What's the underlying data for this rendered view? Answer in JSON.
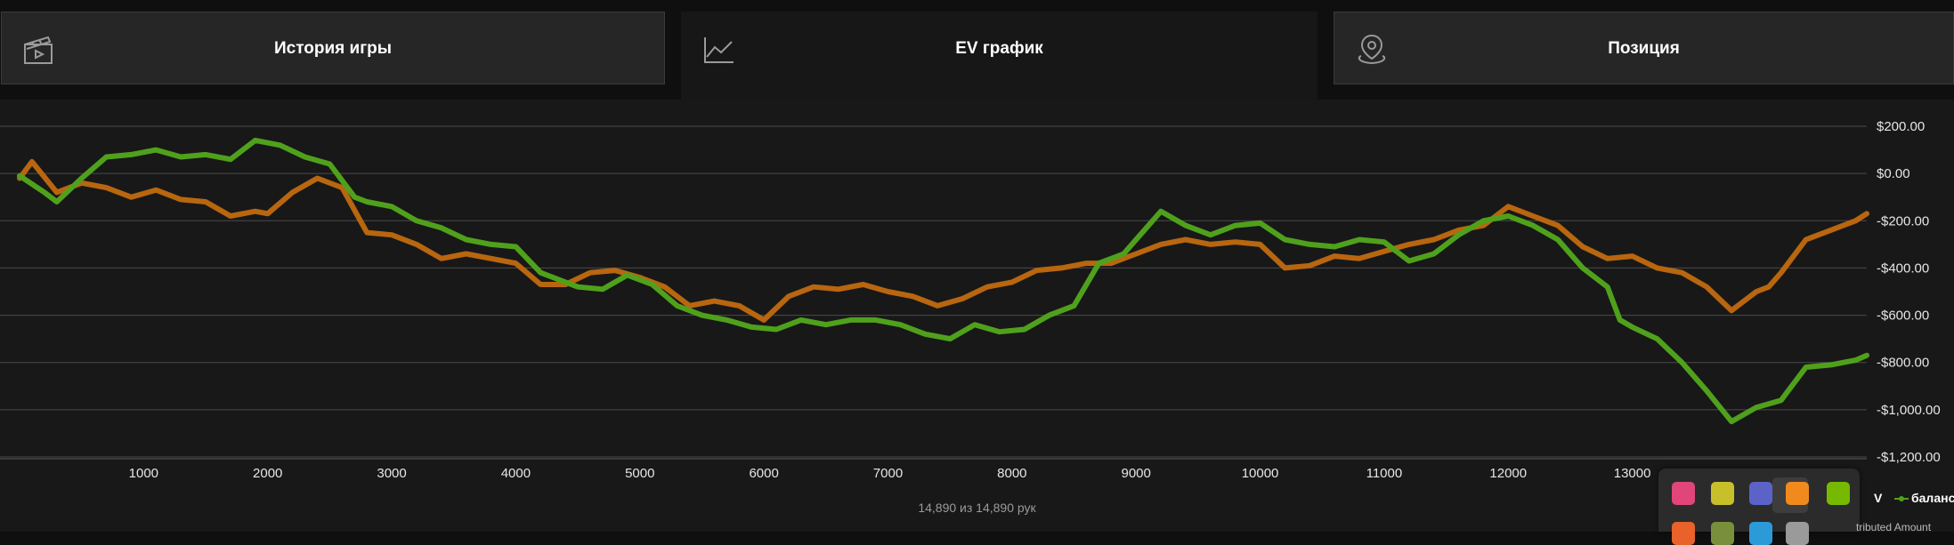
{
  "tabs": [
    {
      "label": "История игры",
      "icon": "clapperboard-icon",
      "active": false
    },
    {
      "label": "EV график",
      "icon": "line-chart-icon",
      "active": true
    },
    {
      "label": "Позиция",
      "icon": "location-pin-icon",
      "active": false
    }
  ],
  "chart_data": {
    "type": "line",
    "ylim": [
      -1200,
      200
    ],
    "xlim": [
      0,
      14890
    ],
    "yticks": [
      200,
      0,
      -200,
      -400,
      -600,
      -800,
      -1000,
      -1200
    ],
    "ytick_labels": [
      "$200.00",
      "$0.00",
      "-$200.00",
      "-$400.00",
      "-$600.00",
      "-$800.00",
      "-$1,000.00",
      "-$1,200.00"
    ],
    "xticks": [
      1000,
      2000,
      3000,
      4000,
      5000,
      6000,
      7000,
      8000,
      9000,
      10000,
      11000,
      12000,
      13000
    ],
    "xtick_labels": [
      "1000",
      "2000",
      "3000",
      "4000",
      "5000",
      "6000",
      "7000",
      "8000",
      "9000",
      "10000",
      "11000",
      "12000",
      "13000"
    ],
    "grid": true,
    "series": [
      {
        "name": "баланс",
        "color": "#4fa11c",
        "points": [
          [
            0,
            -10
          ],
          [
            200,
            -80
          ],
          [
            300,
            -120
          ],
          [
            500,
            -20
          ],
          [
            700,
            70
          ],
          [
            900,
            80
          ],
          [
            1100,
            100
          ],
          [
            1300,
            70
          ],
          [
            1500,
            80
          ],
          [
            1700,
            60
          ],
          [
            1900,
            140
          ],
          [
            2100,
            120
          ],
          [
            2300,
            70
          ],
          [
            2500,
            40
          ],
          [
            2700,
            -100
          ],
          [
            2800,
            -120
          ],
          [
            3000,
            -140
          ],
          [
            3200,
            -200
          ],
          [
            3400,
            -230
          ],
          [
            3600,
            -280
          ],
          [
            3800,
            -300
          ],
          [
            4000,
            -310
          ],
          [
            4200,
            -420
          ],
          [
            4500,
            -480
          ],
          [
            4700,
            -490
          ],
          [
            4900,
            -430
          ],
          [
            5100,
            -470
          ],
          [
            5300,
            -560
          ],
          [
            5500,
            -600
          ],
          [
            5700,
            -620
          ],
          [
            5900,
            -650
          ],
          [
            6100,
            -660
          ],
          [
            6300,
            -620
          ],
          [
            6500,
            -640
          ],
          [
            6700,
            -620
          ],
          [
            6900,
            -620
          ],
          [
            7100,
            -640
          ],
          [
            7300,
            -680
          ],
          [
            7500,
            -700
          ],
          [
            7700,
            -640
          ],
          [
            7900,
            -670
          ],
          [
            8100,
            -660
          ],
          [
            8300,
            -600
          ],
          [
            8500,
            -560
          ],
          [
            8700,
            -380
          ],
          [
            8900,
            -340
          ],
          [
            9000,
            -280
          ],
          [
            9200,
            -160
          ],
          [
            9400,
            -220
          ],
          [
            9600,
            -260
          ],
          [
            9800,
            -220
          ],
          [
            10000,
            -210
          ],
          [
            10200,
            -280
          ],
          [
            10400,
            -300
          ],
          [
            10600,
            -310
          ],
          [
            10800,
            -280
          ],
          [
            11000,
            -290
          ],
          [
            11200,
            -370
          ],
          [
            11400,
            -340
          ],
          [
            11600,
            -260
          ],
          [
            11800,
            -200
          ],
          [
            12000,
            -180
          ],
          [
            12200,
            -220
          ],
          [
            12400,
            -280
          ],
          [
            12600,
            -400
          ],
          [
            12800,
            -480
          ],
          [
            12900,
            -620
          ],
          [
            13000,
            -650
          ],
          [
            13200,
            -700
          ],
          [
            13400,
            -800
          ],
          [
            13600,
            -920
          ],
          [
            13800,
            -1050
          ],
          [
            14000,
            -990
          ],
          [
            14200,
            -960
          ],
          [
            14400,
            -820
          ],
          [
            14600,
            -810
          ],
          [
            14800,
            -790
          ],
          [
            14890,
            -770
          ]
        ]
      },
      {
        "name": "",
        "color": "#b8660f",
        "points": [
          [
            0,
            -20
          ],
          [
            100,
            50
          ],
          [
            300,
            -80
          ],
          [
            500,
            -40
          ],
          [
            700,
            -60
          ],
          [
            900,
            -100
          ],
          [
            1100,
            -70
          ],
          [
            1300,
            -110
          ],
          [
            1500,
            -120
          ],
          [
            1700,
            -180
          ],
          [
            1900,
            -160
          ],
          [
            2000,
            -170
          ],
          [
            2200,
            -80
          ],
          [
            2400,
            -20
          ],
          [
            2600,
            -60
          ],
          [
            2800,
            -250
          ],
          [
            3000,
            -260
          ],
          [
            3200,
            -300
          ],
          [
            3400,
            -360
          ],
          [
            3600,
            -340
          ],
          [
            3800,
            -360
          ],
          [
            4000,
            -380
          ],
          [
            4200,
            -470
          ],
          [
            4400,
            -470
          ],
          [
            4600,
            -420
          ],
          [
            4800,
            -410
          ],
          [
            5000,
            -440
          ],
          [
            5200,
            -480
          ],
          [
            5400,
            -560
          ],
          [
            5600,
            -540
          ],
          [
            5800,
            -560
          ],
          [
            6000,
            -620
          ],
          [
            6200,
            -520
          ],
          [
            6400,
            -480
          ],
          [
            6600,
            -490
          ],
          [
            6800,
            -470
          ],
          [
            7000,
            -500
          ],
          [
            7200,
            -520
          ],
          [
            7400,
            -560
          ],
          [
            7600,
            -530
          ],
          [
            7800,
            -480
          ],
          [
            8000,
            -460
          ],
          [
            8200,
            -410
          ],
          [
            8400,
            -400
          ],
          [
            8600,
            -380
          ],
          [
            8800,
            -380
          ],
          [
            9000,
            -340
          ],
          [
            9200,
            -300
          ],
          [
            9400,
            -280
          ],
          [
            9600,
            -300
          ],
          [
            9800,
            -290
          ],
          [
            10000,
            -300
          ],
          [
            10200,
            -400
          ],
          [
            10400,
            -390
          ],
          [
            10600,
            -350
          ],
          [
            10800,
            -360
          ],
          [
            11000,
            -330
          ],
          [
            11200,
            -300
          ],
          [
            11400,
            -280
          ],
          [
            11600,
            -240
          ],
          [
            11800,
            -220
          ],
          [
            12000,
            -140
          ],
          [
            12200,
            -180
          ],
          [
            12400,
            -220
          ],
          [
            12600,
            -310
          ],
          [
            12800,
            -360
          ],
          [
            13000,
            -350
          ],
          [
            13200,
            -400
          ],
          [
            13400,
            -420
          ],
          [
            13600,
            -480
          ],
          [
            13800,
            -580
          ],
          [
            14000,
            -500
          ],
          [
            14100,
            -480
          ],
          [
            14200,
            -420
          ],
          [
            14400,
            -280
          ],
          [
            14600,
            -240
          ],
          [
            14800,
            -200
          ],
          [
            14890,
            -170
          ]
        ]
      }
    ]
  },
  "footer": {
    "count_text": "14,890 из 14,890 рук"
  },
  "legend": {
    "ev_tail": "V",
    "balance_label": "баланс"
  },
  "tray": {
    "icons": [
      {
        "name": "screen-capture-icon",
        "color": "#e0467a"
      },
      {
        "name": "key-icon",
        "color": "#c8c02a"
      },
      {
        "name": "teams-icon",
        "color": "#5b63c9"
      },
      {
        "name": "office-icon",
        "color": "#f08a1c"
      },
      {
        "name": "nvidia-icon",
        "color": "#76b900"
      },
      {
        "name": "app-icon-orange",
        "color": "#e8622a"
      },
      {
        "name": "app-icon-multi",
        "color": "#7a8f3c"
      },
      {
        "name": "globe-icon",
        "color": "#2a9bd8"
      },
      {
        "name": "muted-speaker-icon",
        "color": "#9a9a9a"
      }
    ]
  },
  "bottom_tail": "tributed Amount"
}
